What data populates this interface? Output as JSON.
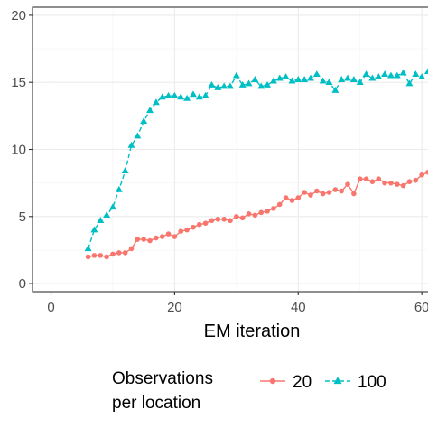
{
  "chart_data": {
    "type": "line",
    "title": "",
    "xlabel": "EM iteration",
    "ylabel": "",
    "xlim": [
      -3,
      61
    ],
    "ylim": [
      -0.6,
      20.6
    ],
    "x_ticks": [
      0,
      20,
      40,
      60
    ],
    "x_tick_labels": [
      "0",
      "20",
      "40",
      "60"
    ],
    "y_ticks": [
      0,
      5,
      10,
      15,
      20
    ],
    "y_tick_labels": [
      "0",
      "5",
      "10",
      "15",
      "20"
    ],
    "grid": true,
    "legend": {
      "title": "Observations\nper location",
      "position": "bottom",
      "entries": [
        "20",
        "100"
      ]
    },
    "series": [
      {
        "name": "20",
        "color": "#F8766D",
        "marker": "circle",
        "line": "solid",
        "x": [
          6,
          7,
          8,
          9,
          10,
          11,
          12,
          13,
          14,
          15,
          16,
          17,
          18,
          19,
          20,
          21,
          22,
          23,
          24,
          25,
          26,
          27,
          28,
          29,
          30,
          31,
          32,
          33,
          34,
          35,
          36,
          37,
          38,
          39,
          40,
          41,
          42,
          43,
          44,
          45,
          46,
          47,
          48,
          49,
          50,
          51,
          52,
          53,
          54,
          55,
          56,
          57,
          58,
          59,
          60,
          61,
          62
        ],
        "values": [
          2.0,
          2.1,
          2.1,
          2.0,
          2.2,
          2.3,
          2.3,
          2.6,
          3.3,
          3.3,
          3.2,
          3.4,
          3.5,
          3.7,
          3.5,
          3.9,
          4.0,
          4.2,
          4.4,
          4.5,
          4.7,
          4.8,
          4.8,
          4.7,
          5.0,
          4.9,
          5.2,
          5.1,
          5.3,
          5.4,
          5.6,
          5.9,
          6.4,
          6.2,
          6.4,
          6.8,
          6.6,
          6.9,
          6.7,
          6.8,
          7.0,
          6.9,
          7.4,
          6.7,
          7.8,
          7.8,
          7.6,
          7.8,
          7.5,
          7.5,
          7.4,
          7.3,
          7.6,
          7.7,
          8.1,
          8.3,
          8.5
        ]
      },
      {
        "name": "100",
        "color": "#00BFC4",
        "marker": "triangle",
        "line": "dashed",
        "x": [
          6,
          7,
          8,
          9,
          10,
          11,
          12,
          13,
          14,
          15,
          16,
          17,
          18,
          19,
          20,
          21,
          22,
          23,
          24,
          25,
          26,
          27,
          28,
          29,
          30,
          31,
          32,
          33,
          34,
          35,
          36,
          37,
          38,
          39,
          40,
          41,
          42,
          43,
          44,
          45,
          46,
          47,
          48,
          49,
          50,
          51,
          52,
          53,
          54,
          55,
          56,
          57,
          58,
          59,
          60,
          61,
          62
        ],
        "values": [
          2.6,
          4.0,
          4.7,
          5.1,
          5.7,
          7.0,
          8.4,
          10.3,
          11.0,
          12.1,
          12.9,
          13.5,
          13.9,
          14.0,
          14.0,
          13.9,
          13.8,
          14.1,
          13.9,
          14.0,
          14.8,
          14.6,
          14.7,
          14.7,
          15.5,
          14.8,
          14.9,
          15.2,
          14.7,
          14.8,
          15.1,
          15.3,
          15.4,
          15.1,
          15.2,
          15.2,
          15.3,
          15.6,
          15.1,
          15.0,
          14.4,
          15.2,
          15.3,
          15.2,
          15.0,
          15.6,
          15.3,
          15.4,
          15.6,
          15.5,
          15.5,
          15.7,
          14.9,
          15.6,
          15.4,
          15.8,
          15.7
        ]
      }
    ]
  }
}
